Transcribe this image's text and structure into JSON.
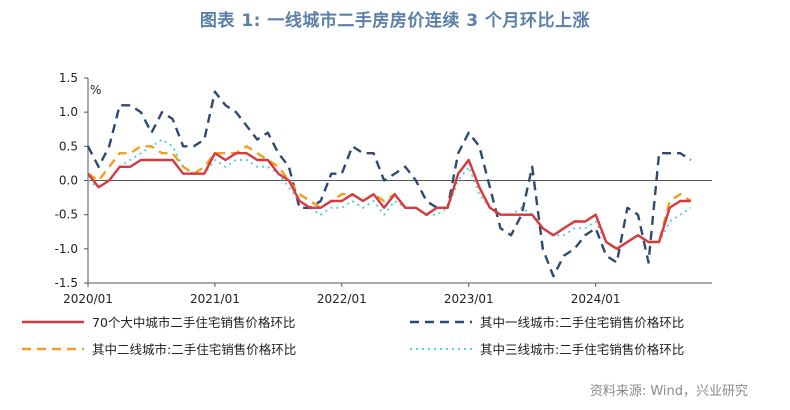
{
  "title": "图表 1:  一线城市二手房房价连续 3 个月环比上涨",
  "source": "资料来源: Wind，兴业研究",
  "chart_data": {
    "type": "line",
    "unit_label": "%",
    "ylim": [
      -1.5,
      1.5
    ],
    "yticks": [
      "1.5",
      "1.0",
      "0.5",
      "0.0",
      "-0.5",
      "-1.0",
      "-1.5"
    ],
    "ytick_values": [
      1.5,
      1.0,
      0.5,
      0.0,
      -0.5,
      -1.0,
      -1.5
    ],
    "xlim_months": [
      "2020-01",
      "2024-12"
    ],
    "xticks": [
      "2020/01",
      "2021/01",
      "2022/01",
      "2023/01",
      "2024/01"
    ],
    "legend_placement": "bottom",
    "series": [
      {
        "name": "70个大中城市二手住宅销售价格环比",
        "color": "#d9383f",
        "style": "solid",
        "values": [
          0.1,
          -0.1,
          0.0,
          0.2,
          0.2,
          0.3,
          0.3,
          0.3,
          0.3,
          0.1,
          0.1,
          0.1,
          0.4,
          0.3,
          0.4,
          0.4,
          0.3,
          0.3,
          0.1,
          0.0,
          -0.3,
          -0.4,
          -0.4,
          -0.3,
          -0.3,
          -0.2,
          -0.3,
          -0.2,
          -0.4,
          -0.2,
          -0.4,
          -0.4,
          -0.5,
          -0.4,
          -0.4,
          0.1,
          0.3,
          -0.1,
          -0.4,
          -0.5,
          -0.5,
          -0.5,
          -0.5,
          -0.7,
          -0.8,
          -0.7,
          -0.6,
          -0.6,
          -0.5,
          -0.9,
          -1.0,
          -0.9,
          -0.8,
          -0.9,
          -0.9,
          -0.4,
          -0.3,
          -0.3
        ]
      },
      {
        "name": "其中一线城市:二手住宅销售价格环比",
        "color": "#2e4a73",
        "style": "dash",
        "values": [
          0.5,
          0.2,
          0.5,
          1.1,
          1.1,
          1.0,
          0.7,
          1.0,
          0.9,
          0.5,
          0.5,
          0.6,
          1.3,
          1.1,
          1.0,
          0.8,
          0.6,
          0.7,
          0.4,
          0.2,
          -0.4,
          -0.4,
          -0.3,
          0.1,
          0.1,
          0.5,
          0.4,
          0.4,
          0.0,
          0.1,
          0.2,
          0.0,
          -0.3,
          -0.4,
          -0.4,
          0.4,
          0.7,
          0.5,
          -0.1,
          -0.7,
          -0.8,
          -0.5,
          0.2,
          -1.0,
          -1.4,
          -1.1,
          -1.0,
          -0.8,
          -0.7,
          -1.1,
          -1.2,
          -0.4,
          -0.5,
          -1.2,
          0.4,
          0.4,
          0.4,
          0.3
        ]
      },
      {
        "name": "其中二线城市:二手住宅销售价格环比",
        "color": "#f0a020",
        "style": "dash",
        "values": [
          0.1,
          0.0,
          0.2,
          0.4,
          0.4,
          0.5,
          0.5,
          0.4,
          0.4,
          0.2,
          0.1,
          0.2,
          0.4,
          0.4,
          0.4,
          0.5,
          0.4,
          0.3,
          0.2,
          0.0,
          -0.2,
          -0.3,
          -0.4,
          -0.3,
          -0.2,
          -0.2,
          -0.3,
          -0.2,
          -0.3,
          -0.2,
          -0.4,
          -0.4,
          -0.5,
          -0.4,
          -0.4,
          0.1,
          0.3,
          -0.1,
          -0.4,
          -0.5,
          -0.5,
          -0.5,
          -0.5,
          -0.7,
          -0.8,
          -0.7,
          -0.6,
          -0.6,
          -0.5,
          -0.9,
          -1.0,
          -0.9,
          -0.8,
          -0.9,
          -0.9,
          -0.3,
          -0.2,
          -0.3
        ]
      },
      {
        "name": "其中三线城市:二手住宅销售价格环比",
        "color": "#4fd2e0",
        "style": "dot",
        "values": [
          0.0,
          -0.1,
          0.0,
          0.2,
          0.3,
          0.4,
          0.5,
          0.6,
          0.5,
          0.2,
          0.1,
          0.1,
          0.3,
          0.2,
          0.3,
          0.3,
          0.2,
          0.2,
          0.1,
          -0.1,
          -0.3,
          -0.4,
          -0.5,
          -0.4,
          -0.4,
          -0.3,
          -0.4,
          -0.3,
          -0.5,
          -0.3,
          -0.4,
          -0.4,
          -0.5,
          -0.5,
          -0.4,
          0.0,
          0.2,
          -0.2,
          -0.4,
          -0.5,
          -0.5,
          -0.4,
          -0.5,
          -0.7,
          -0.8,
          -0.8,
          -0.7,
          -0.7,
          -0.6,
          -0.9,
          -1.0,
          -0.9,
          -0.8,
          -0.9,
          -0.9,
          -0.6,
          -0.5,
          -0.4
        ]
      }
    ]
  }
}
